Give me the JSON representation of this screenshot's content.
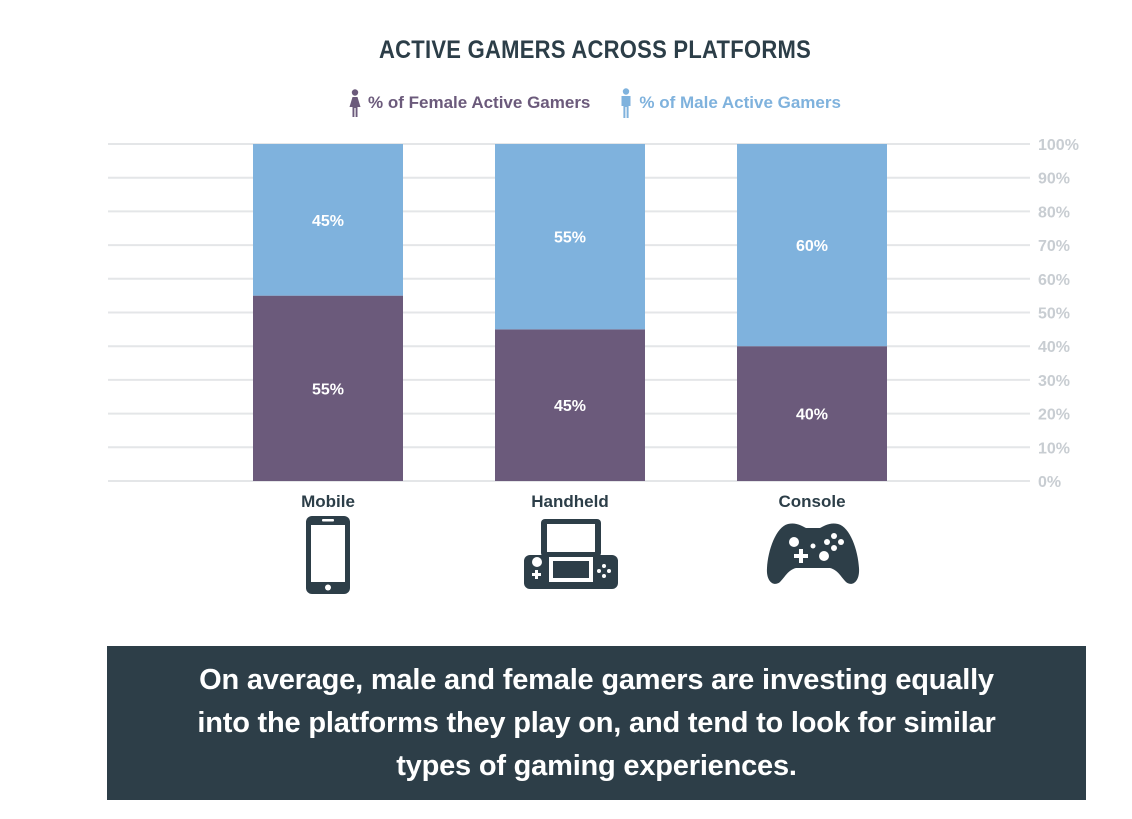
{
  "title": "ACTIVE GAMERS ACROSS PLATFORMS",
  "legend": {
    "female": "% of Female Active Gamers",
    "male": "% of Male Active Gamers"
  },
  "colors": {
    "female": "#6b5a7b",
    "male": "#7fb2dd",
    "grid": "#e4e6e8",
    "tick": "#c8cdd2",
    "banner": "#2d3e48",
    "text_dark": "#2c3e48"
  },
  "chart_data": {
    "type": "bar",
    "stacked": true,
    "categories": [
      "Mobile",
      "Handheld",
      "Console"
    ],
    "series": [
      {
        "name": "% of Female Active Gamers",
        "values": [
          55,
          45,
          40
        ],
        "labels": [
          "55%",
          "45%",
          "40%"
        ]
      },
      {
        "name": "% of Male Active Gamers",
        "values": [
          45,
          55,
          60
        ],
        "labels": [
          "45%",
          "55%",
          "60%"
        ]
      }
    ],
    "ylim": [
      0,
      100
    ],
    "yticks": [
      "0%",
      "10%",
      "20%",
      "30%",
      "40%",
      "50%",
      "60%",
      "70%",
      "80%",
      "90%",
      "100%"
    ],
    "grid": true,
    "y_axis_side": "right",
    "legend_position": "top"
  },
  "icons": [
    "mobile-phone-icon",
    "handheld-console-icon",
    "gamepad-icon"
  ],
  "banner": {
    "text": "On average, male and female gamers are investing equally into the platforms they play on, and tend to look for similar types of gaming experiences."
  }
}
